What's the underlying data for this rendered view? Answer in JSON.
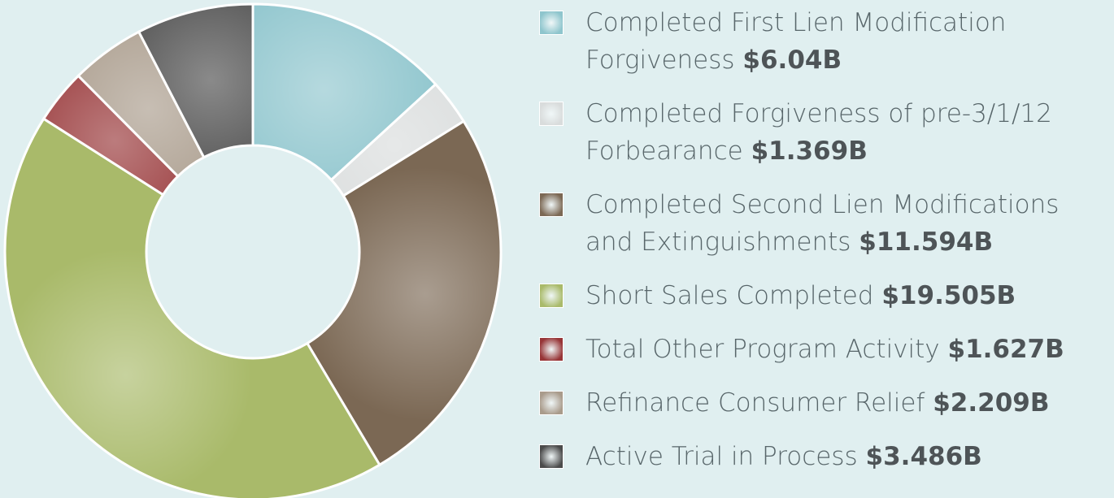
{
  "chart_data": {
    "type": "pie",
    "donut": true,
    "categories": [
      "Completed First Lien Modification Forgiveness",
      "Completed Forgiveness of pre-3/1/12 Forbearance",
      "Completed Second Lien Modifications and Extinguishments",
      "Short Sales Completed",
      "Total Other Program Activity",
      "Refinance Consumer Relief",
      "Active Trial in Process"
    ],
    "values": [
      6.04,
      1.369,
      11.594,
      19.505,
      1.627,
      2.209,
      3.486
    ],
    "value_labels": [
      "$6.04B",
      "$1.369B",
      "$11.594B",
      "$19.505B",
      "$1.627B",
      "$2.209B",
      "$3.486B"
    ],
    "colors": [
      "#8ec5cd",
      "#d9dcdc",
      "#7b6854",
      "#a9ba6a",
      "#973537",
      "#a99b8b",
      "#4b4b4b"
    ],
    "legend": "right"
  }
}
